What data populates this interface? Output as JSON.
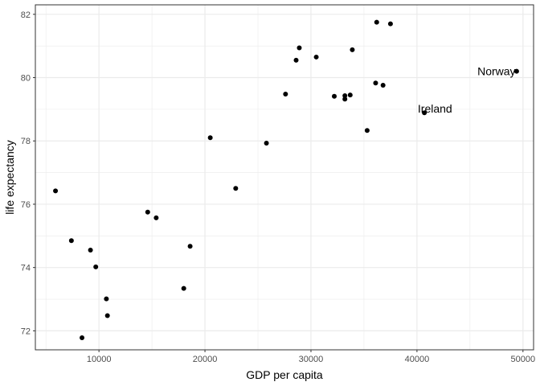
{
  "chart_data": {
    "type": "scatter",
    "xlabel": "GDP per capita",
    "ylabel": "life expectancy",
    "xlim": [
      4000,
      51000
    ],
    "ylim": [
      71.4,
      82.3
    ],
    "x_ticks": [
      10000,
      20000,
      30000,
      40000,
      50000
    ],
    "x_tick_labels": [
      "10000",
      "20000",
      "30000",
      "40000",
      "50000"
    ],
    "x_minor": [
      5000,
      15000,
      25000,
      35000,
      45000
    ],
    "y_ticks": [
      72,
      74,
      76,
      78,
      80,
      82
    ],
    "y_tick_labels": [
      "72",
      "74",
      "76",
      "78",
      "80",
      "82"
    ],
    "y_minor": [
      73,
      75,
      77,
      79,
      81
    ],
    "grid": true,
    "points": [
      {
        "x": 5900,
        "y": 76.42
      },
      {
        "x": 7400,
        "y": 74.85
      },
      {
        "x": 8400,
        "y": 71.78
      },
      {
        "x": 9200,
        "y": 74.55
      },
      {
        "x": 9700,
        "y": 74.02
      },
      {
        "x": 10700,
        "y": 73.01
      },
      {
        "x": 10800,
        "y": 72.48
      },
      {
        "x": 14600,
        "y": 75.75
      },
      {
        "x": 15400,
        "y": 75.57
      },
      {
        "x": 18000,
        "y": 73.34
      },
      {
        "x": 18600,
        "y": 74.67
      },
      {
        "x": 20500,
        "y": 78.1
      },
      {
        "x": 22900,
        "y": 76.5
      },
      {
        "x": 25800,
        "y": 77.93
      },
      {
        "x": 27600,
        "y": 79.48
      },
      {
        "x": 28600,
        "y": 80.55
      },
      {
        "x": 28900,
        "y": 80.94
      },
      {
        "x": 30500,
        "y": 80.65
      },
      {
        "x": 32200,
        "y": 79.41
      },
      {
        "x": 33200,
        "y": 79.43
      },
      {
        "x": 33200,
        "y": 79.32
      },
      {
        "x": 33700,
        "y": 79.45
      },
      {
        "x": 33900,
        "y": 80.88
      },
      {
        "x": 35300,
        "y": 78.33
      },
      {
        "x": 36100,
        "y": 79.83
      },
      {
        "x": 36200,
        "y": 81.75
      },
      {
        "x": 36800,
        "y": 79.76
      },
      {
        "x": 37500,
        "y": 81.7
      },
      {
        "x": 40700,
        "y": 78.89
      },
      {
        "x": 49400,
        "y": 80.2
      }
    ],
    "annotations": [
      {
        "text": "Norway",
        "x": 47500,
        "y": 80.2
      },
      {
        "text": "Ireland",
        "x": 41700,
        "y": 79.02
      }
    ],
    "point_color": "#000000",
    "grid_color": "#ebebeb",
    "panel_border_color": "#333333"
  }
}
